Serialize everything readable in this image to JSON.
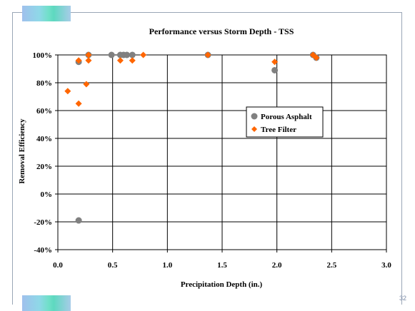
{
  "slide": {
    "number": "32",
    "logo_colors": [
      "#9fc0ec",
      "#6fe0c8",
      "#a8cce8"
    ]
  },
  "colors": {
    "porous_asphalt": "#808080",
    "tree_filter": "#ff6600",
    "gridline": "#000000"
  },
  "chart_data": {
    "type": "scatter",
    "title": "Performance versus Storm Depth - TSS",
    "xlabel": "Precipitation Depth (in.)",
    "ylabel": "Removal Efficiency",
    "xlim": [
      0,
      3.0
    ],
    "ylim": [
      -40,
      100
    ],
    "x_ticks": [
      "0.0",
      "0.5",
      "1.0",
      "1.5",
      "2.0",
      "2.5",
      "3.0"
    ],
    "y_ticks": [
      "100%",
      "80%",
      "60%",
      "40%",
      "20%",
      "0%",
      "-20%",
      "-40%"
    ],
    "y_unit": "percent",
    "grid": "major gridlines on both axes",
    "legend_position": "right-center",
    "series": [
      {
        "name": "Porous Asphalt",
        "marker": "circle",
        "color": "#808080",
        "points": [
          {
            "x": 0.19,
            "y": 95
          },
          {
            "x": 0.19,
            "y": -19
          },
          {
            "x": 0.28,
            "y": 100
          },
          {
            "x": 0.49,
            "y": 100
          },
          {
            "x": 0.57,
            "y": 100
          },
          {
            "x": 0.6,
            "y": 100
          },
          {
            "x": 0.63,
            "y": 100
          },
          {
            "x": 0.68,
            "y": 100
          },
          {
            "x": 1.37,
            "y": 100
          },
          {
            "x": 1.98,
            "y": 89
          },
          {
            "x": 2.33,
            "y": 100
          },
          {
            "x": 2.36,
            "y": 98
          }
        ]
      },
      {
        "name": "Tree Filter",
        "marker": "diamond",
        "color": "#ff6600",
        "points": [
          {
            "x": 0.09,
            "y": 74
          },
          {
            "x": 0.19,
            "y": 65
          },
          {
            "x": 0.19,
            "y": 96
          },
          {
            "x": 0.26,
            "y": 79
          },
          {
            "x": 0.28,
            "y": 96
          },
          {
            "x": 0.28,
            "y": 100
          },
          {
            "x": 0.57,
            "y": 96
          },
          {
            "x": 0.68,
            "y": 96
          },
          {
            "x": 0.78,
            "y": 100
          },
          {
            "x": 1.37,
            "y": 100
          },
          {
            "x": 1.98,
            "y": 95
          },
          {
            "x": 2.33,
            "y": 100
          },
          {
            "x": 2.36,
            "y": 98
          }
        ]
      }
    ]
  }
}
